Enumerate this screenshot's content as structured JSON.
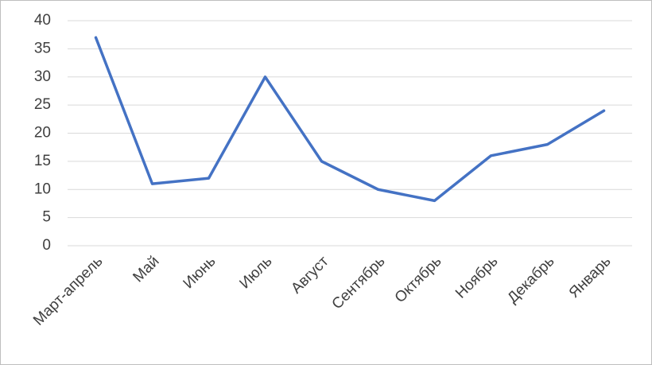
{
  "chart_data": {
    "type": "line",
    "categories": [
      "Март-апрель",
      "Май",
      "Июнь",
      "Июль",
      "Август",
      "Сентябрь",
      "Октябрь",
      "Ноябрь",
      "Декабрь",
      "Январь"
    ],
    "values": [
      37,
      11,
      12,
      30,
      15,
      10,
      8,
      16,
      18,
      24
    ],
    "color": "#4472c4",
    "ylim": [
      0,
      40
    ],
    "yticks": [
      0,
      5,
      10,
      15,
      20,
      25,
      30,
      35,
      40
    ],
    "grid": true
  }
}
